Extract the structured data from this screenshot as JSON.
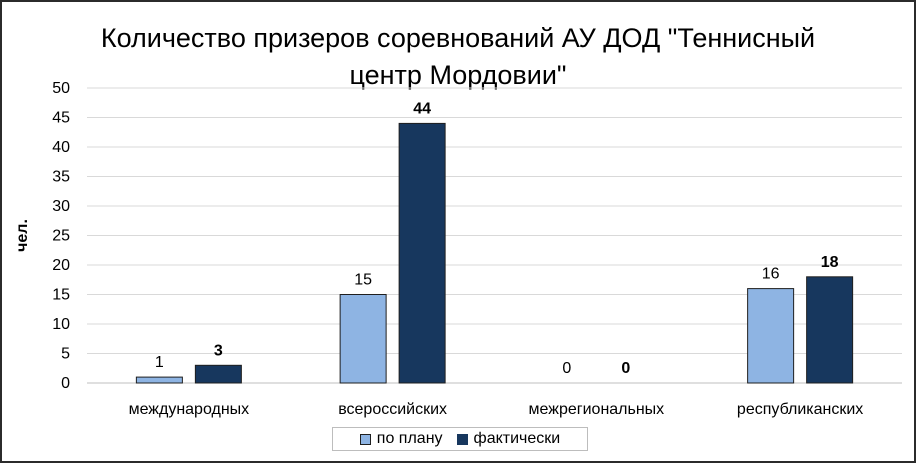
{
  "chart_data": {
    "type": "bar",
    "title": "Количество призеров соревнований АУ ДОД \"Теннисный центр Мордовии\"",
    "title_lines": [
      "Количество призеров соревнований АУ ДОД \"Теннисный",
      "центр Мордовии\""
    ],
    "ylabel": "чел.",
    "xlabel": "",
    "ylim": [
      0,
      50
    ],
    "ytick_step": 5,
    "grid": true,
    "legend_position": "bottom",
    "categories": [
      "международных",
      "всероссийских",
      "межрегиональных",
      "республиканских"
    ],
    "series": [
      {
        "name": "по плану",
        "values": [
          1,
          15,
          0,
          16
        ],
        "color": "#8eb4e3",
        "label_bold": false
      },
      {
        "name": "фактически",
        "values": [
          3,
          44,
          0,
          18
        ],
        "color": "#17375e",
        "label_bold": true
      }
    ]
  }
}
